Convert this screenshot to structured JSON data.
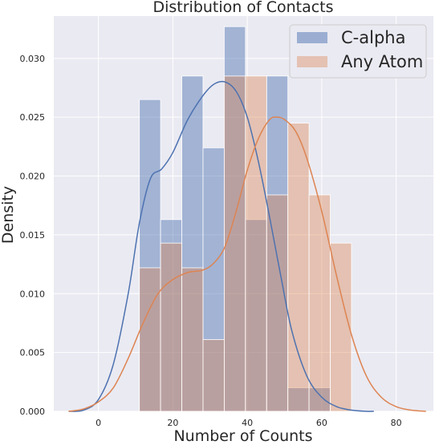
{
  "chart_data": {
    "type": "bar",
    "title": "Distribution of Contacts",
    "xlabel": "Number of Counts",
    "ylabel": "Density",
    "xlim": [
      -12,
      90
    ],
    "ylim": [
      0,
      0.0336
    ],
    "xticks": [
      0,
      20,
      40,
      60,
      80
    ],
    "yticks": [
      0.0,
      0.005,
      0.01,
      0.015,
      0.02,
      0.025,
      0.03
    ],
    "ytick_labels": [
      "0.000",
      "0.005",
      "0.010",
      "0.015",
      "0.020",
      "0.025",
      "0.030"
    ],
    "grid": true,
    "legend_position": "top-right",
    "series": [
      {
        "name": "C-alpha",
        "color": "#4c72b0",
        "bin_edges": [
          11.0,
          16.7,
          22.4,
          28.1,
          33.8,
          39.5,
          45.2,
          50.9,
          56.6,
          62.3
        ],
        "densities": [
          0.0265,
          0.0163,
          0.0285,
          0.0224,
          0.0327,
          0.0163,
          0.0285,
          0.002,
          0.002
        ],
        "kde_x": [
          -8,
          -4,
          0,
          4,
          8,
          11,
          14,
          17,
          20,
          24,
          28,
          31,
          34,
          37,
          40,
          43,
          46,
          49,
          52,
          56,
          60,
          64,
          68,
          72,
          74
        ],
        "kde_y": [
          0.0,
          0.0001,
          0.001,
          0.004,
          0.01,
          0.016,
          0.0198,
          0.0206,
          0.022,
          0.0248,
          0.0268,
          0.0278,
          0.028,
          0.0272,
          0.025,
          0.0212,
          0.0165,
          0.0115,
          0.0068,
          0.003,
          0.0012,
          0.0004,
          0.0001,
          0.0,
          0.0
        ]
      },
      {
        "name": "Any Atom",
        "color": "#dd8452",
        "bin_edges": [
          11.0,
          16.7,
          22.4,
          28.1,
          33.8,
          39.5,
          45.2,
          50.9,
          56.6,
          62.3,
          68.0
        ],
        "densities": [
          0.0122,
          0.0143,
          0.0122,
          0.0061,
          0.0285,
          0.0285,
          0.0184,
          0.0245,
          0.0184,
          0.0143
        ],
        "kde_x": [
          -8,
          -4,
          0,
          4,
          8,
          12,
          16,
          20,
          24,
          28,
          31,
          34,
          37,
          40,
          43,
          46,
          48,
          50,
          53,
          56,
          60,
          64,
          68,
          72,
          76,
          80,
          84,
          88
        ],
        "kde_y": [
          0.0,
          0.0002,
          0.0008,
          0.002,
          0.0045,
          0.0075,
          0.01,
          0.0112,
          0.0118,
          0.012,
          0.0126,
          0.014,
          0.017,
          0.0205,
          0.0232,
          0.0248,
          0.025,
          0.0248,
          0.0238,
          0.0215,
          0.017,
          0.0115,
          0.0065,
          0.003,
          0.0012,
          0.0004,
          0.0001,
          0.0
        ]
      }
    ]
  }
}
